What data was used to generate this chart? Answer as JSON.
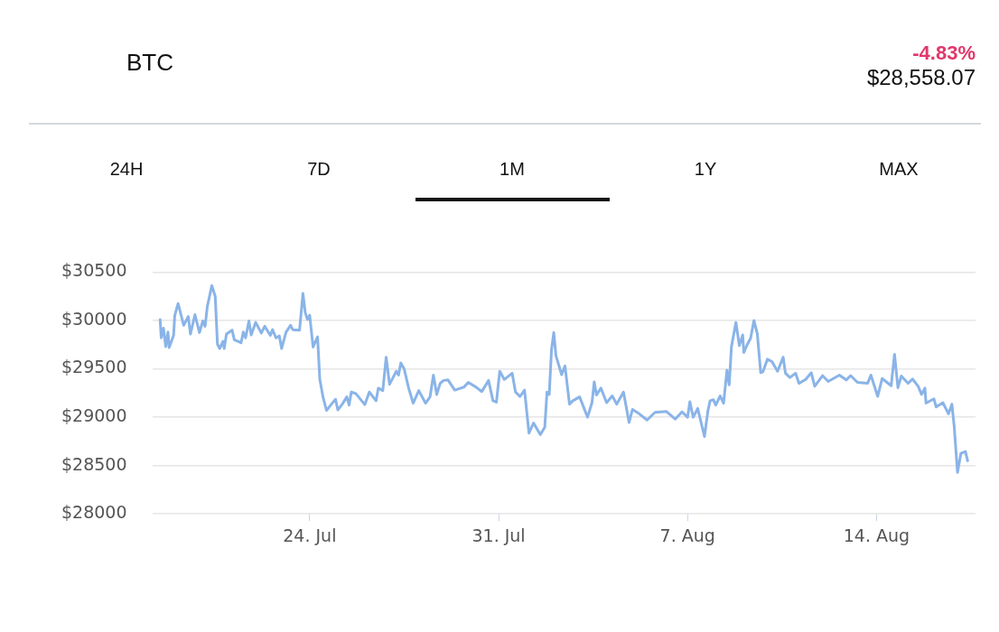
{
  "chart_data": {
    "type": "line",
    "title": "BTC",
    "annotations": [
      "-4.83%",
      "$28,558.07",
      "24H",
      "7D",
      "1M",
      "1Y",
      "MAX"
    ],
    "xlim": [
      "--07-18T04:00",
      "--08-17T16:00"
    ],
    "xticks": [
      {
        "value": "--07-24",
        "label": "24. Jul"
      },
      {
        "value": "--07-31",
        "label": "31. Jul"
      },
      {
        "value": "--08-07",
        "label": "7. Aug"
      },
      {
        "value": "--08-14",
        "label": "14. Aug"
      }
    ],
    "ylim": [
      28000,
      30500
    ],
    "yticks": [
      {
        "value": 28000,
        "label": "$28000"
      },
      {
        "value": 28500,
        "label": "$28500"
      },
      {
        "value": 29000,
        "label": "$29000"
      },
      {
        "value": 29500,
        "label": "$29500"
      },
      {
        "value": 30000,
        "label": "$30000"
      },
      {
        "value": 30500,
        "label": "$30500"
      }
    ],
    "grid": "y",
    "legend": false,
    "marker": "none",
    "line_style": "solid",
    "series": [
      {
        "color": "#8ab4e8",
        "x": [
          "--07-18T11:00",
          "--07-18T12:00",
          "--07-18T14:00",
          "--07-18T16:00",
          "--07-18T18:00",
          "--07-18T19:00",
          "--07-18T23:00",
          "--07-19T00:00",
          "--07-19T03:00",
          "--07-19T08:00",
          "--07-19T12:00",
          "--07-19T14:00",
          "--07-19T18:00",
          "--07-19T22:00",
          "--07-20T01:00",
          "--07-20T03:00",
          "--07-20T05:00",
          "--07-20T09:00",
          "--07-20T12:00",
          "--07-20T14:00",
          "--07-20T16:00",
          "--07-20T19:00",
          "--07-20T20:00",
          "--07-20T22:00",
          "--07-21T03:00",
          "--07-21T05:00",
          "--07-21T11:00",
          "--07-21T13:00",
          "--07-21T15:00",
          "--07-21T18:00",
          "--07-21T20:00",
          "--07-22T00:00",
          "--07-22T05:00",
          "--07-22T08:00",
          "--07-22T13:00",
          "--07-22T15:00",
          "--07-22T18:00",
          "--07-22T21:00",
          "--07-22T23:00",
          "--07-23T03:00",
          "--07-23T07:00",
          "--07-23T09:00",
          "--07-23T15:00",
          "--07-23T18:00",
          "--07-23T20:00",
          "--07-23T22:00",
          "--07-24T00:00",
          "--07-24T03:00",
          "--07-24T07:00",
          "--07-24T09:00",
          "--07-24T12:00",
          "--07-24T15:00",
          "--07-24T19:00",
          "--07-24T23:00",
          "--07-25T01:00",
          "--07-25T05:00",
          "--07-25T09:00",
          "--07-25T11:00",
          "--07-25T13:00",
          "--07-25T17:00",
          "--07-26T01:00",
          "--07-26T05:00",
          "--07-26T11:00",
          "--07-26T13:00",
          "--07-26T17:00",
          "--07-26T20:00",
          "--07-26T23:00",
          "--07-27T05:00",
          "--07-27T07:00",
          "--07-27T09:00",
          "--07-27T12:00",
          "--07-27T16:00",
          "--07-27T20:00",
          "--07-28T01:00",
          "--07-28T07:00",
          "--07-28T11:00",
          "--07-28T14:00",
          "--07-28T17:00",
          "--07-28T20:00",
          "--07-28T23:00",
          "--07-29T03:00",
          "--07-29T09:00",
          "--07-29T17:00",
          "--07-29T21:00",
          "--07-30T04:00",
          "--07-30T09:00",
          "--07-30T15:00",
          "--07-30T19:00",
          "--07-30T22:00",
          "--07-31T01:00",
          "--07-31T05:00",
          "--07-31T12:00",
          "--07-31T15:00",
          "--07-31T19:00",
          "--07-31T23:00",
          "--08-01T03:00",
          "--08-01T07:00",
          "--08-01T13:00",
          "--08-01T17:00",
          "--08-01T19:00",
          "--08-01T21:00",
          "--08-01T23:00",
          "--08-02T01:00",
          "--08-02T03:00",
          "--08-02T08:00",
          "--08-02T11:00",
          "--08-02T15:00",
          "--08-02T18:00",
          "--08-03T00:00",
          "--08-03T07:00",
          "--08-03T11:00",
          "--08-03T13:00",
          "--08-03T15:00",
          "--08-03T19:00",
          "--08-04T00:00",
          "--08-04T05:00",
          "--08-04T09:00",
          "--08-04T15:00",
          "--08-04T20:00",
          "--08-04T23:00",
          "--08-05T05:00",
          "--08-05T12:00",
          "--08-05T19:00",
          "--08-06T05:00",
          "--08-06T13:00",
          "--08-06T19:00",
          "--08-07T00:00",
          "--08-07T02:00",
          "--08-07T05:00",
          "--08-07T09:00",
          "--08-07T15:00",
          "--08-07T18:00",
          "--08-07T20:00",
          "--08-07T23:00",
          "--08-08T01:00",
          "--08-08T05:00",
          "--08-08T08:00",
          "--08-08T11:00",
          "--08-08T13:00",
          "--08-08T15:00",
          "--08-08T19:00",
          "--08-08T22:00",
          "--08-09T01:00",
          "--08-09T02:00",
          "--08-09T05:00",
          "--08-09T08:00",
          "--08-09T11:00",
          "--08-09T14:00",
          "--08-09T17:00",
          "--08-09T19:00",
          "--08-09T23:00",
          "--08-10T03:00",
          "--08-10T08:00",
          "--08-10T13:00",
          "--08-10T15:00",
          "--08-10T19:00",
          "--08-11T00:00",
          "--08-11T03:00",
          "--08-11T09:00",
          "--08-11T14:00",
          "--08-11T17:00",
          "--08-12T00:00",
          "--08-12T05:00",
          "--08-12T15:00",
          "--08-12T21:00",
          "--08-13T01:00",
          "--08-13T07:00",
          "--08-13T16:00",
          "--08-13T19:00",
          "--08-14T01:00",
          "--08-14T05:00",
          "--08-14T13:00",
          "--08-14T16:00",
          "--08-14T19:00",
          "--08-14T22:00",
          "--08-15T04:00",
          "--08-15T08:00",
          "--08-15T13:00",
          "--08-15T16:00",
          "--08-15T19:00",
          "--08-15T20:00",
          "--08-16T03:00",
          "--08-16T05:00",
          "--08-16T11:00",
          "--08-16T16:00",
          "--08-16T19:00",
          "--08-16T21:00",
          "--08-17T00:00",
          "--08-17T03:00",
          "--08-17T07:00",
          "--08-17T09:00"
        ],
        "values": [
          30010,
          29820,
          29920,
          29730,
          29880,
          29720,
          29845,
          30050,
          30175,
          29950,
          30040,
          29860,
          30060,
          29875,
          29995,
          29940,
          30145,
          30360,
          30250,
          29755,
          29710,
          29785,
          29710,
          29860,
          29900,
          29800,
          29770,
          29880,
          29820,
          29995,
          29850,
          29980,
          29870,
          29940,
          29845,
          29905,
          29820,
          29840,
          29710,
          29880,
          29950,
          29905,
          29900,
          30280,
          30085,
          30010,
          30055,
          29725,
          29830,
          29390,
          29200,
          29070,
          29130,
          29185,
          29075,
          29135,
          29210,
          29125,
          29260,
          29245,
          29130,
          29260,
          29170,
          29300,
          29275,
          29620,
          29340,
          29475,
          29435,
          29560,
          29500,
          29300,
          29145,
          29275,
          29145,
          29210,
          29435,
          29235,
          29350,
          29380,
          29385,
          29280,
          29310,
          29360,
          29310,
          29265,
          29380,
          29170,
          29155,
          29475,
          29390,
          29455,
          29260,
          29215,
          29280,
          28835,
          28940,
          28820,
          28895,
          29260,
          29235,
          29695,
          29875,
          29635,
          29440,
          29530,
          29135,
          29170,
          29210,
          29000,
          29150,
          29365,
          29230,
          29300,
          29150,
          29220,
          29135,
          29260,
          28945,
          29080,
          29035,
          28970,
          29050,
          29060,
          28980,
          29055,
          29000,
          29160,
          29000,
          29090,
          28800,
          29060,
          29170,
          29180,
          29125,
          29220,
          29145,
          29485,
          29335,
          29730,
          29980,
          29740,
          29850,
          29670,
          29750,
          29815,
          30000,
          29860,
          29460,
          29470,
          29600,
          29575,
          29475,
          29620,
          29455,
          29410,
          29455,
          29350,
          29390,
          29460,
          29320,
          29430,
          29370,
          29435,
          29385,
          29430,
          29360,
          29350,
          29435,
          29215,
          29400,
          29325,
          29650,
          29305,
          29425,
          29350,
          29395,
          29320,
          29235,
          29300,
          29145,
          29190,
          29105,
          29150,
          29035,
          29135,
          28910,
          28430,
          28625,
          28645,
          28550
        ]
      }
    ]
  }
}
